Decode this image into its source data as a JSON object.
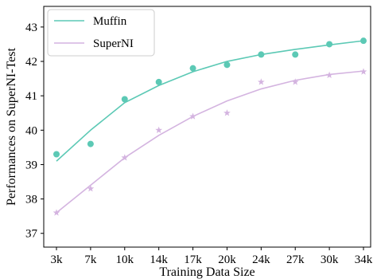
{
  "chart_data": {
    "type": "line",
    "categories": [
      "3k",
      "7k",
      "10k",
      "14k",
      "17k",
      "20k",
      "24k",
      "27k",
      "30k",
      "34k"
    ],
    "xlabel": "Training Data Size",
    "ylabel": "Performances on SuperNI-Test",
    "ylim": [
      36.6,
      43.6
    ],
    "yticks": [
      37,
      38,
      39,
      40,
      41,
      42,
      43
    ],
    "grid": false,
    "legend": "top-left",
    "series": [
      {
        "name": "Muffin",
        "color": "#5cc9b5",
        "marker": "circle",
        "points": [
          39.3,
          39.6,
          40.9,
          41.4,
          41.8,
          41.9,
          42.2,
          42.2,
          42.5,
          42.6
        ],
        "trend": [
          39.1,
          40.0,
          40.8,
          41.3,
          41.7,
          42.0,
          42.2,
          42.35,
          42.48,
          42.6
        ]
      },
      {
        "name": "SuperNI",
        "color": "#d4b4e0",
        "marker": "star",
        "points": [
          37.6,
          38.3,
          39.2,
          40.0,
          40.4,
          40.5,
          41.4,
          41.4,
          41.6,
          41.7
        ],
        "trend": [
          37.6,
          38.4,
          39.2,
          39.85,
          40.4,
          40.85,
          41.2,
          41.45,
          41.62,
          41.72
        ]
      }
    ]
  }
}
